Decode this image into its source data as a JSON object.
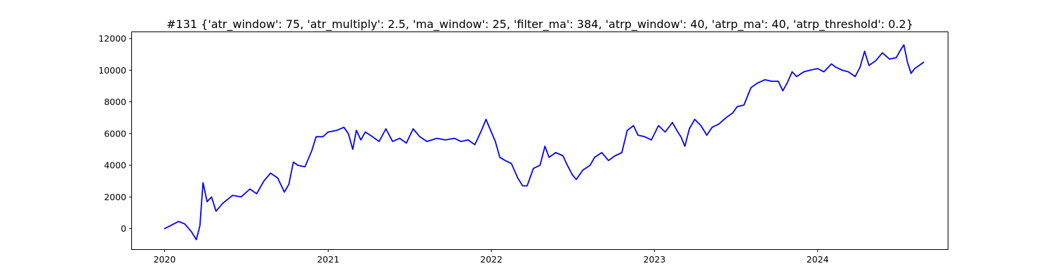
{
  "chart_data": {
    "type": "line",
    "title": "#131 {'atr_window': 75, 'atr_multiply': 2.5, 'ma_window': 25, 'filter_ma': 384, 'atrp_window': 40, 'atrp_ma': 40, 'atrp_threshold': 0.2}",
    "xlabel": "",
    "ylabel": "",
    "xlim": [
      "2019-10-20",
      "2024-10-18"
    ],
    "ylim": [
      -1300,
      12400
    ],
    "x_ticks": [
      "2020-01-01",
      "2021-01-01",
      "2022-01-01",
      "2023-01-01",
      "2024-01-01"
    ],
    "x_tick_labels": [
      "2020",
      "2021",
      "2022",
      "2023",
      "2024"
    ],
    "y_ticks": [
      0,
      2000,
      4000,
      6000,
      8000,
      10000,
      12000
    ],
    "y_tick_labels": [
      "0",
      "2000",
      "4000",
      "6000",
      "8000",
      "10000",
      "12000"
    ],
    "grid": false,
    "series": [
      {
        "color": "#0000ff",
        "points": [
          [
            "2020-01-01",
            0
          ],
          [
            "2020-01-15",
            200
          ],
          [
            "2020-02-01",
            450
          ],
          [
            "2020-02-15",
            300
          ],
          [
            "2020-03-01",
            -200
          ],
          [
            "2020-03-12",
            -700
          ],
          [
            "2020-03-20",
            200
          ],
          [
            "2020-03-27",
            2900
          ],
          [
            "2020-04-05",
            1700
          ],
          [
            "2020-04-15",
            2000
          ],
          [
            "2020-04-25",
            1100
          ],
          [
            "2020-05-10",
            1600
          ],
          [
            "2020-06-01",
            2100
          ],
          [
            "2020-06-20",
            2000
          ],
          [
            "2020-07-10",
            2500
          ],
          [
            "2020-07-25",
            2200
          ],
          [
            "2020-08-10",
            3000
          ],
          [
            "2020-08-25",
            3500
          ],
          [
            "2020-09-10",
            3200
          ],
          [
            "2020-09-25",
            2300
          ],
          [
            "2020-10-05",
            2800
          ],
          [
            "2020-10-15",
            4200
          ],
          [
            "2020-10-25",
            4000
          ],
          [
            "2020-11-10",
            3900
          ],
          [
            "2020-11-25",
            4900
          ],
          [
            "2020-12-05",
            5800
          ],
          [
            "2020-12-20",
            5800
          ],
          [
            "2021-01-01",
            6100
          ],
          [
            "2021-01-20",
            6200
          ],
          [
            "2021-02-05",
            6400
          ],
          [
            "2021-02-15",
            6000
          ],
          [
            "2021-02-25",
            5000
          ],
          [
            "2021-03-05",
            6200
          ],
          [
            "2021-03-15",
            5600
          ],
          [
            "2021-03-25",
            6100
          ],
          [
            "2021-04-10",
            5800
          ],
          [
            "2021-04-25",
            5500
          ],
          [
            "2021-05-10",
            6300
          ],
          [
            "2021-05-25",
            5500
          ],
          [
            "2021-06-10",
            5700
          ],
          [
            "2021-06-25",
            5400
          ],
          [
            "2021-07-10",
            6300
          ],
          [
            "2021-07-25",
            5800
          ],
          [
            "2021-08-10",
            5500
          ],
          [
            "2021-09-01",
            5700
          ],
          [
            "2021-09-20",
            5600
          ],
          [
            "2021-10-10",
            5700
          ],
          [
            "2021-10-25",
            5500
          ],
          [
            "2021-11-10",
            5600
          ],
          [
            "2021-11-25",
            5300
          ],
          [
            "2021-12-10",
            6200
          ],
          [
            "2021-12-20",
            6900
          ],
          [
            "2022-01-01",
            6100
          ],
          [
            "2022-01-10",
            5500
          ],
          [
            "2022-01-20",
            4500
          ],
          [
            "2022-02-01",
            4300
          ],
          [
            "2022-02-15",
            4100
          ],
          [
            "2022-03-01",
            3200
          ],
          [
            "2022-03-12",
            2700
          ],
          [
            "2022-03-22",
            2700
          ],
          [
            "2022-04-05",
            3800
          ],
          [
            "2022-04-20",
            4000
          ],
          [
            "2022-05-01",
            5200
          ],
          [
            "2022-05-10",
            4500
          ],
          [
            "2022-05-25",
            4800
          ],
          [
            "2022-06-10",
            4600
          ],
          [
            "2022-06-20",
            4000
          ],
          [
            "2022-07-01",
            3400
          ],
          [
            "2022-07-10",
            3100
          ],
          [
            "2022-07-25",
            3700
          ],
          [
            "2022-08-10",
            4000
          ],
          [
            "2022-08-20",
            4500
          ],
          [
            "2022-09-05",
            4800
          ],
          [
            "2022-09-20",
            4300
          ],
          [
            "2022-10-05",
            4600
          ],
          [
            "2022-10-20",
            4800
          ],
          [
            "2022-11-01",
            6200
          ],
          [
            "2022-11-15",
            6500
          ],
          [
            "2022-11-25",
            5900
          ],
          [
            "2022-12-10",
            5800
          ],
          [
            "2022-12-25",
            5600
          ],
          [
            "2023-01-10",
            6500
          ],
          [
            "2023-01-25",
            6100
          ],
          [
            "2023-02-10",
            6700
          ],
          [
            "2023-02-20",
            6200
          ],
          [
            "2023-03-01",
            5800
          ],
          [
            "2023-03-10",
            5200
          ],
          [
            "2023-03-20",
            6300
          ],
          [
            "2023-04-01",
            6900
          ],
          [
            "2023-04-15",
            6500
          ],
          [
            "2023-04-28",
            5900
          ],
          [
            "2023-05-10",
            6400
          ],
          [
            "2023-05-25",
            6600
          ],
          [
            "2023-06-10",
            7000
          ],
          [
            "2023-06-25",
            7300
          ],
          [
            "2023-07-05",
            7700
          ],
          [
            "2023-07-20",
            7800
          ],
          [
            "2023-08-05",
            8900
          ],
          [
            "2023-08-20",
            9200
          ],
          [
            "2023-09-05",
            9400
          ],
          [
            "2023-09-20",
            9300
          ],
          [
            "2023-10-05",
            9300
          ],
          [
            "2023-10-15",
            8700
          ],
          [
            "2023-10-25",
            9200
          ],
          [
            "2023-11-05",
            9900
          ],
          [
            "2023-11-15",
            9600
          ],
          [
            "2023-12-01",
            9900
          ],
          [
            "2023-12-15",
            10000
          ],
          [
            "2024-01-01",
            10100
          ],
          [
            "2024-01-15",
            9900
          ],
          [
            "2024-02-01",
            10400
          ],
          [
            "2024-02-10",
            10200
          ],
          [
            "2024-02-25",
            10000
          ],
          [
            "2024-03-10",
            9900
          ],
          [
            "2024-03-25",
            9600
          ],
          [
            "2024-04-05",
            10200
          ],
          [
            "2024-04-15",
            11200
          ],
          [
            "2024-04-25",
            10300
          ],
          [
            "2024-05-10",
            10600
          ],
          [
            "2024-05-25",
            11100
          ],
          [
            "2024-06-10",
            10700
          ],
          [
            "2024-06-25",
            10800
          ],
          [
            "2024-07-05",
            11300
          ],
          [
            "2024-07-12",
            11600
          ],
          [
            "2024-07-20",
            10500
          ],
          [
            "2024-07-28",
            9800
          ],
          [
            "2024-08-05",
            10100
          ],
          [
            "2024-08-15",
            10300
          ],
          [
            "2024-08-25",
            10500
          ]
        ]
      }
    ]
  }
}
